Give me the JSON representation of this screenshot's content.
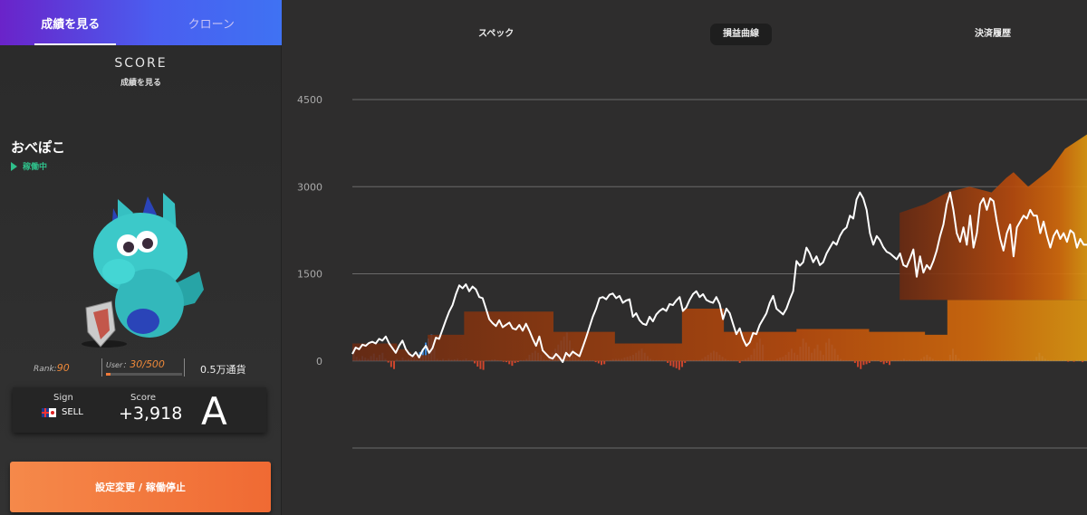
{
  "left_tabs": [
    {
      "label": "成績を見る",
      "active": true
    },
    {
      "label": "クローン",
      "active": false
    }
  ],
  "score_header": {
    "title": "SCORE",
    "subtitle": "成績を見る"
  },
  "bot": {
    "name": "おべぽこ",
    "status": "稼働中"
  },
  "stats": {
    "rank_label": "Rank:",
    "rank_value": "90",
    "user_label": "User：",
    "user_value": "30/500",
    "user_fill": 0.06,
    "currency": "0.5万通貨"
  },
  "signal_card": {
    "sign_label": "Sign",
    "sign_value": "SELL",
    "score_label": "Score",
    "score_value": "+3,918",
    "grade": "A"
  },
  "action_button": {
    "label": "設定変更 / 稼働停止"
  },
  "right_tabs": [
    {
      "label": "スペック",
      "active": false
    },
    {
      "label": "損益曲線",
      "active": true
    },
    {
      "label": "決済履歴",
      "active": false
    }
  ],
  "colors": {
    "accent_orange": "#f06a33",
    "tab_gradient_start": "#6a23c9",
    "tab_gradient_end": "#3f72f3",
    "status_green": "#2fbf8a",
    "bar_pos": "#3f86d6",
    "bar_neg": "#d0462c",
    "line": "#ffffff"
  },
  "chart_data": {
    "type": "area",
    "yticks": [
      "4500",
      "3000",
      "1500",
      "0"
    ],
    "ylim": [
      -1500,
      4500
    ],
    "grid": true,
    "line_series": [
      120,
      230,
      200,
      280,
      260,
      310,
      330,
      300,
      380,
      350,
      420,
      300,
      220,
      140,
      260,
      350,
      200,
      120,
      80,
      150,
      60,
      180,
      260,
      140,
      220,
      400,
      380,
      540,
      700,
      850,
      960,
      1150,
      1300,
      1250,
      1320,
      1200,
      1280,
      1230,
      1100,
      1080,
      900,
      720,
      650,
      600,
      700,
      580,
      620,
      660,
      560,
      540,
      620,
      520,
      640,
      520,
      380,
      260,
      420,
      180,
      120,
      60,
      40,
      120,
      60,
      -20,
      140,
      80,
      160,
      120,
      80,
      240,
      400,
      580,
      760,
      900,
      1080,
      1100,
      1060,
      1140,
      1160,
      1080,
      1120,
      1000,
      1040,
      1060,
      760,
      820,
      700,
      640,
      620,
      760,
      680,
      800,
      860,
      900,
      860,
      980,
      960,
      1040,
      1100,
      860,
      920,
      1050,
      1150,
      1200,
      1100,
      1150,
      1050,
      1020,
      1000,
      1100,
      980,
      720,
      900,
      820,
      640,
      460,
      560,
      380,
      260,
      320,
      480,
      460,
      620,
      720,
      820,
      1000,
      1120,
      900,
      850,
      800,
      900,
      1060,
      1200,
      1720,
      1640,
      1700,
      1950,
      1850,
      1700,
      1800,
      1650,
      1700,
      1850,
      1950,
      2050,
      2000,
      2150,
      2250,
      2300,
      2500,
      2450,
      2780,
      2900,
      2800,
      2600,
      2200,
      2000,
      2150,
      2080,
      1960,
      1880,
      1850,
      1800,
      1750,
      1850,
      1650,
      1620,
      1760,
      1920,
      1450,
      1800,
      1520,
      1650,
      1580,
      1720,
      1900,
      2150,
      2350,
      2700,
      2900,
      2600,
      2200,
      2050,
      2300,
      2000,
      2500,
      1950,
      2200,
      2700,
      2800,
      2600,
      2800,
      2750,
      2400,
      2100,
      1900,
      2200,
      2350,
      1800,
      2300,
      2400,
      2500,
      2450,
      2600,
      2500,
      2500,
      2200,
      2400,
      2150,
      1950,
      2150,
      2250,
      2100,
      2200,
      2050,
      2250,
      2200,
      1950,
      2100,
      2000,
      2000
    ],
    "area_series": [
      300,
      300,
      300,
      300,
      300,
      300,
      300,
      300,
      300,
      300,
      300,
      300,
      300,
      300,
      300,
      300,
      200,
      200,
      200,
      200,
      150,
      100,
      100,
      100,
      100,
      100,
      100,
      450,
      450,
      450,
      450,
      450,
      450,
      450,
      450,
      450,
      450,
      450,
      450,
      450,
      850,
      850,
      850,
      850,
      850,
      850,
      850,
      850,
      850,
      850,
      850,
      850,
      850,
      850,
      850,
      850,
      850,
      850,
      850,
      850,
      850,
      850,
      850,
      850,
      850,
      850,
      850,
      850,
      850,
      850,
      850,
      850,
      500,
      500,
      500,
      500,
      500,
      500,
      500,
      500,
      500,
      500,
      500,
      500,
      500,
      500,
      500,
      500,
      500,
      500,
      500,
      500,
      500,
      500,
      300,
      300,
      300,
      300,
      300,
      300,
      300,
      300,
      300,
      300,
      300,
      300,
      300,
      300,
      300,
      300,
      300,
      300,
      300,
      300,
      300,
      300,
      300,
      300,
      900,
      900,
      900,
      900,
      900,
      900,
      900,
      900,
      900,
      900,
      900,
      900,
      900,
      900,
      900,
      500,
      500,
      500,
      500,
      500,
      500,
      500,
      500,
      500,
      500,
      500,
      500,
      500,
      500,
      500,
      500,
      500,
      500,
      500,
      500,
      500,
      500,
      500,
      500,
      500,
      500,
      550,
      550,
      550,
      550,
      550,
      550,
      550,
      550,
      550,
      550,
      550,
      550,
      550,
      550,
      550,
      550,
      550,
      550,
      550,
      550,
      550,
      550,
      550,
      550,
      550,
      550,
      500,
      500,
      500,
      500,
      500,
      500,
      500,
      500,
      500,
      500,
      500,
      500,
      500,
      500,
      500,
      500,
      500,
      500,
      500,
      500,
      450,
      450,
      450,
      450,
      450,
      450,
      450,
      450,
      1050,
      1050,
      1050,
      1050,
      1050,
      1050,
      1050,
      1050,
      1050,
      1050,
      1050,
      1050,
      1050,
      1050,
      1050,
      1050,
      1050,
      1050,
      1050,
      1050,
      1050,
      1050,
      1050,
      1050,
      1050,
      1050,
      1050,
      1050,
      1050,
      1050,
      1050,
      1050,
      1050,
      1050,
      1050,
      1050,
      1050,
      1050,
      1050,
      1050,
      1050,
      1050,
      1050,
      1050,
      1050,
      1050,
      1050,
      1050,
      1050,
      1050
    ],
    "bars": [
      0.35,
      0.1,
      0.05,
      0.12,
      0.08,
      0.05,
      0.12,
      0.18,
      0.08,
      0.15,
      0.2,
      0.05,
      -0.04,
      -0.15,
      -0.2,
      0.05,
      0.02,
      0.08,
      0.03,
      0.05,
      0.15,
      0.12,
      0.05,
      0.22,
      0.3,
      0.45,
      0.55,
      0.65,
      0.3,
      0.05,
      0.02,
      0.05,
      0.02,
      0.05,
      0.03,
      0.04,
      0.05,
      0.02,
      0.03,
      0.06,
      0.02,
      0.03,
      -0.06,
      -0.14,
      -0.2,
      -0.22,
      0.02,
      0.02,
      0.03,
      0.04,
      0.02,
      0.02,
      -0.02,
      -0.03,
      -0.08,
      -0.12,
      -0.05,
      -0.03,
      0.02,
      0.02,
      0.05,
      0.15,
      0.2,
      0.25,
      0.2,
      0.15,
      0.05,
      0.02,
      0.05,
      0.2,
      0.3,
      0.4,
      0.5,
      0.6,
      0.7,
      0.5,
      0.3,
      0.1,
      0.05,
      0.02,
      0.02,
      0.02,
      0.02,
      0.02,
      -0.03,
      -0.06,
      -0.1,
      -0.08,
      0.02,
      0.02,
      0.05,
      0.05,
      0.05,
      0.05,
      0.08,
      0.1,
      0.12,
      0.15,
      0.2,
      0.25,
      0.3,
      0.2,
      0.12,
      0.05,
      0.02,
      0.02,
      0.02,
      0.02,
      0.02,
      -0.05,
      -0.12,
      -0.15,
      -0.18,
      -0.22,
      -0.15,
      -0.05,
      0.02,
      0.02,
      0.02,
      0.02,
      0.02,
      0.05,
      0.1,
      0.15,
      0.2,
      0.25,
      0.22,
      0.15,
      0.1,
      0.05,
      0.02,
      0.02,
      0.02,
      0.02,
      -0.05,
      0.02,
      0.05,
      0.08,
      0.15,
      0.3,
      0.45,
      0.55,
      0.4,
      0.02,
      0.02,
      0.02,
      0.02,
      0.05,
      0.08,
      0.1,
      0.15,
      0.22,
      0.3,
      0.2,
      0.15,
      0.35,
      0.55,
      0.45,
      0.35,
      0.2,
      0.3,
      0.4,
      0.25,
      0.15,
      0.45,
      0.55,
      0.4,
      0.3,
      0.15,
      0.05,
      0.02,
      0.02,
      0.02,
      0.02,
      -0.05,
      -0.15,
      -0.2,
      -0.1,
      -0.08,
      -0.05,
      0.02,
      0.02,
      0.02,
      -0.03,
      -0.08,
      -0.05,
      -0.1,
      0.02,
      0.02,
      0.02,
      0.02,
      0.05,
      0.02,
      0.03,
      0.02,
      0.02,
      0.02,
      0.05,
      0.1,
      0.15,
      0.1,
      0.05,
      0.02,
      0.02,
      0.02,
      0.02,
      0.02,
      0.15,
      0.3,
      0.15,
      0.05,
      0.02,
      0.02,
      0.02,
      0.02,
      0.02,
      0.02,
      0.02,
      0.02,
      0.02,
      0.02,
      0.02,
      0.02,
      0.02,
      0.02,
      0.02,
      0.02,
      0.02,
      0.02,
      0.02,
      0.02,
      0.02,
      0.02,
      0.02,
      0.02,
      0.02,
      0.02,
      0.1,
      0.2,
      0.12,
      0.05,
      0.02,
      0.02,
      0.02,
      0.02,
      0.02,
      0.02,
      0.02,
      -0.02,
      0.02,
      -0.02,
      0.02,
      0.02,
      -0.03,
      0.02
    ]
  }
}
